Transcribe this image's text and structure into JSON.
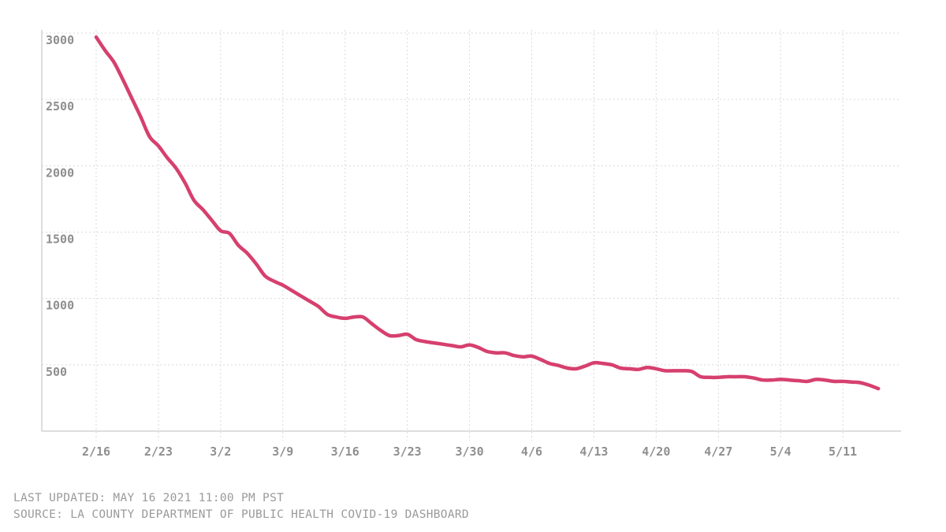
{
  "chart_data": {
    "type": "line",
    "title": "",
    "xlabel": "",
    "ylabel": "",
    "ylim": [
      0,
      3000
    ],
    "yticks": [
      500,
      1000,
      1500,
      2000,
      2500,
      3000
    ],
    "xticks": [
      {
        "label": "2/16",
        "day": 0
      },
      {
        "label": "2/23",
        "day": 7
      },
      {
        "label": "3/2",
        "day": 14
      },
      {
        "label": "3/9",
        "day": 21
      },
      {
        "label": "3/16",
        "day": 28
      },
      {
        "label": "3/23",
        "day": 35
      },
      {
        "label": "3/30",
        "day": 42
      },
      {
        "label": "4/6",
        "day": 49
      },
      {
        "label": "4/13",
        "day": 56
      },
      {
        "label": "4/20",
        "day": 63
      },
      {
        "label": "4/27",
        "day": 70
      },
      {
        "label": "5/4",
        "day": 77
      },
      {
        "label": "5/11",
        "day": 84
      }
    ],
    "grid": true,
    "color": "#d6406e",
    "series": [
      {
        "values": [
          2970,
          2870,
          2780,
          2650,
          2510,
          2370,
          2220,
          2150,
          2060,
          1980,
          1870,
          1740,
          1670,
          1590,
          1510,
          1490,
          1400,
          1340,
          1260,
          1170,
          1130,
          1100,
          1060,
          1020,
          980,
          940,
          880,
          860,
          850,
          860,
          860,
          810,
          760,
          720,
          720,
          730,
          690,
          675,
          665,
          655,
          645,
          635,
          650,
          630,
          600,
          590,
          590,
          570,
          560,
          565,
          540,
          510,
          495,
          475,
          470,
          490,
          515,
          510,
          500,
          475,
          470,
          465,
          480,
          470,
          455,
          455,
          455,
          450,
          410,
          405,
          405,
          410,
          410,
          410,
          400,
          385,
          385,
          390,
          385,
          380,
          375,
          390,
          385,
          375,
          375,
          370,
          365,
          345,
          320
        ]
      }
    ]
  },
  "footer": {
    "updated": "LAST UPDATED: MAY 16 2021 11:00 PM PST",
    "source": "SOURCE: LA COUNTY DEPARTMENT OF PUBLIC HEALTH COVID-19 DASHBOARD"
  }
}
